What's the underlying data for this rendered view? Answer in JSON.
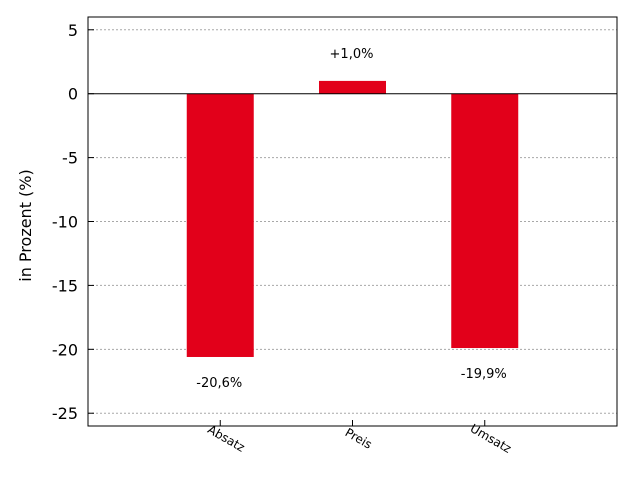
{
  "chart_data": {
    "type": "bar",
    "categories": [
      "Absatz",
      "Preis",
      "Umsatz"
    ],
    "values": [
      -20.6,
      1.0,
      -19.9
    ],
    "data_labels": [
      "-20,6%",
      "+1,0%",
      "-19,9%"
    ],
    "title": "",
    "xlabel": "",
    "ylabel": "in Prozent (%)",
    "ylim": [
      -26,
      6
    ],
    "yticks": [
      5,
      0,
      -5,
      -10,
      -15,
      -20,
      -25
    ],
    "grid": true,
    "bar_color": "#e2001a",
    "legend": "none"
  }
}
